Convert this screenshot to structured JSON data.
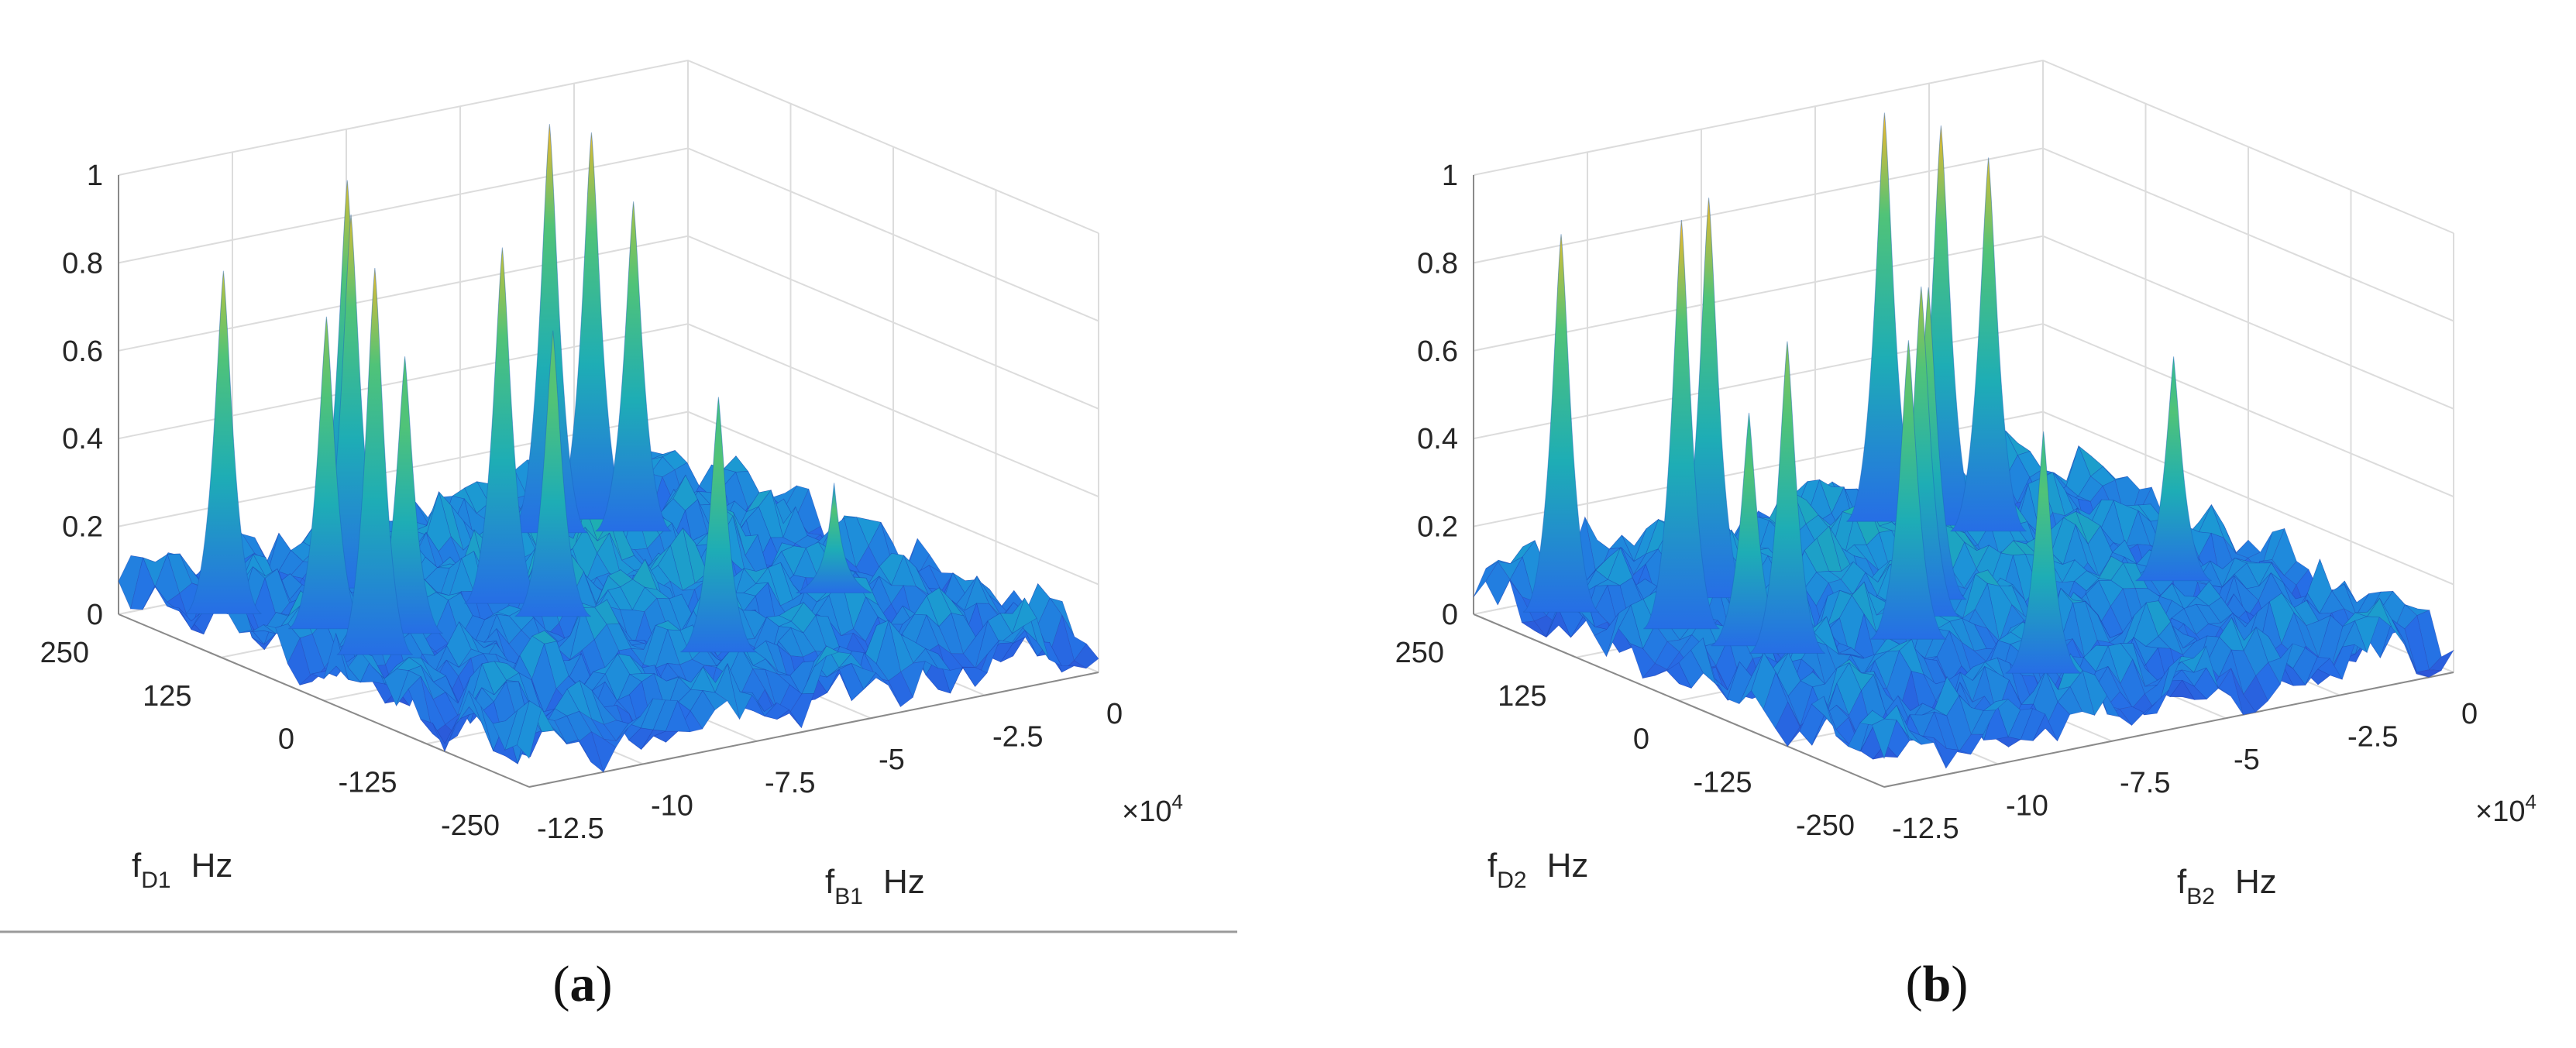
{
  "chart_data": [
    {
      "type": "surface",
      "panel_label": "a",
      "zlim": [
        0,
        1
      ],
      "xlim_hz_x1e4": [
        -12.5,
        0
      ],
      "ylim_hz": [
        -250,
        250
      ],
      "z_ticks": [
        "0",
        "0.2",
        "0.4",
        "0.6",
        "0.8",
        "1"
      ],
      "x_ticks": [
        "-12.5",
        "-10",
        "-7.5",
        "-5",
        "-2.5",
        "0"
      ],
      "y_ticks": [
        "250",
        "125",
        "0",
        "-125",
        "-250"
      ],
      "x_multiplier": "×10",
      "x_multiplier_exp": "4",
      "xlabel": {
        "main": "f",
        "sub": "B1",
        "unit": "Hz"
      },
      "ylabel": {
        "main": "f",
        "sub": "D1",
        "unit": "Hz"
      },
      "noise_floor": 0.1,
      "peaks": [
        {
          "fB": -12.0,
          "fD": 150,
          "z": 0.85
        },
        {
          "fB": -11.0,
          "fD": 80,
          "z": 0.78
        },
        {
          "fB": -11.2,
          "fD": 10,
          "z": 0.95
        },
        {
          "fB": -10.0,
          "fD": 40,
          "z": 0.7
        },
        {
          "fB": -9.2,
          "fD": 150,
          "z": 0.92
        },
        {
          "fB": -8.2,
          "fD": 210,
          "z": 0.93
        },
        {
          "fB": -7.5,
          "fD": 60,
          "z": 0.88
        },
        {
          "fB": -6.0,
          "fD": -120,
          "z": 0.65
        },
        {
          "fB": -7.2,
          "fD": 15,
          "z": 0.72
        },
        {
          "fB": -4.3,
          "fD": 180,
          "z": 1.0
        },
        {
          "fB": -3.2,
          "fD": 190,
          "z": 0.95
        },
        {
          "fB": -3.0,
          "fD": 150,
          "z": 0.82
        },
        {
          "fB": -2.2,
          "fD": -50,
          "z": 0.32
        }
      ]
    },
    {
      "type": "surface",
      "panel_label": "b",
      "zlim": [
        0,
        1
      ],
      "xlim_hz_x1e4": [
        -12.5,
        0
      ],
      "ylim_hz": [
        -250,
        250
      ],
      "z_ticks": [
        "0",
        "0.2",
        "0.4",
        "0.6",
        "0.8",
        "1"
      ],
      "x_ticks": [
        "-12.5",
        "-10",
        "-7.5",
        "-5",
        "-2.5",
        "0"
      ],
      "y_ticks": [
        "250",
        "125",
        "0",
        "-125",
        "-250"
      ],
      "x_multiplier": "×10",
      "x_multiplier_exp": "4",
      "xlabel": {
        "main": "f",
        "sub": "B2",
        "unit": "Hz"
      },
      "ylabel": {
        "main": "f",
        "sub": "D2",
        "unit": "Hz"
      },
      "noise_floor": 0.1,
      "peaks": [
        {
          "fB": -12.2,
          "fD": 160,
          "z": 0.93
        },
        {
          "fB": -11.0,
          "fD": 80,
          "z": 1.0
        },
        {
          "fB": -10.6,
          "fD": 20,
          "z": 0.6
        },
        {
          "fB": -10.3,
          "fD": -10,
          "z": 0.78
        },
        {
          "fB": -9.5,
          "fD": 130,
          "z": 0.98
        },
        {
          "fB": -8.0,
          "fD": -30,
          "z": 0.75
        },
        {
          "fB": -7.2,
          "fD": -150,
          "z": 0.62
        },
        {
          "fB": -7.0,
          "fD": 10,
          "z": 0.82
        },
        {
          "fB": -6.3,
          "fD": 40,
          "z": 0.78
        },
        {
          "fB": -4.2,
          "fD": 210,
          "z": 1.0
        },
        {
          "fB": -3.5,
          "fD": 180,
          "z": 0.98
        },
        {
          "fB": -3.0,
          "fD": 150,
          "z": 0.92
        },
        {
          "fB": -2.0,
          "fD": -20,
          "z": 0.58
        }
      ]
    }
  ]
}
